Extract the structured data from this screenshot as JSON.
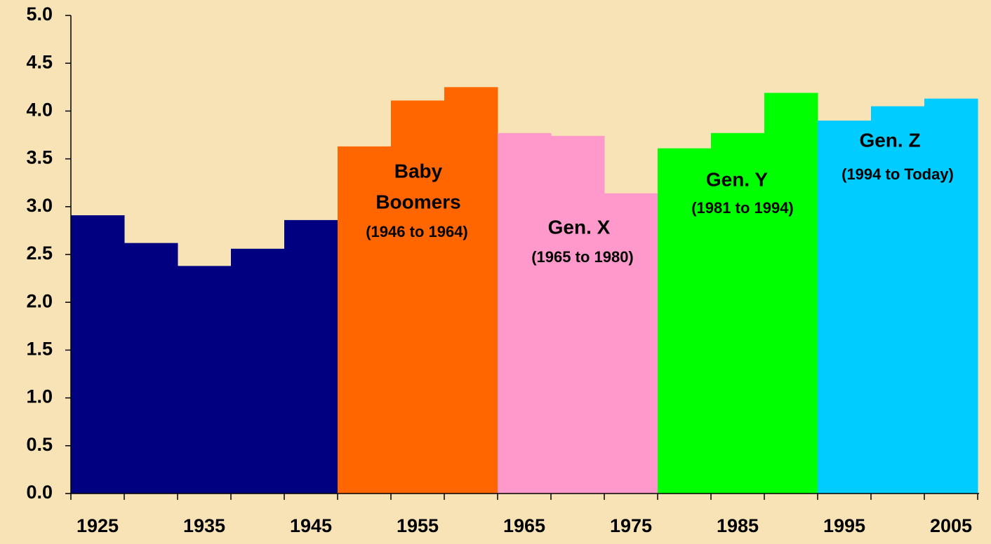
{
  "chart_data": {
    "type": "bar",
    "categories": [
      "1925",
      null,
      "1935",
      null,
      "1945",
      null,
      "1955",
      null,
      "1965",
      null,
      "1975",
      null,
      "1985",
      null,
      "1995",
      null,
      "2005"
    ],
    "values": [
      2.91,
      2.62,
      2.38,
      2.56,
      2.86,
      3.63,
      4.11,
      4.25,
      3.77,
      3.74,
      3.14,
      3.61,
      3.77,
      4.19,
      3.9,
      4.05,
      4.13
    ],
    "colors": [
      "#000080",
      "#000080",
      "#000080",
      "#000080",
      "#000080",
      "#ff6600",
      "#ff6600",
      "#ff6600",
      "#ff99cc",
      "#ff99cc",
      "#ff99cc",
      "#00ff00",
      "#00ff00",
      "#00ff00",
      "#00ccff",
      "#00ccff",
      "#00ccff"
    ],
    "ylim": [
      0,
      5
    ],
    "yticks": [
      {
        "value": 0,
        "label": "0.0"
      },
      {
        "value": 0.5,
        "label": "0.5"
      },
      {
        "value": 1,
        "label": "1.0"
      },
      {
        "value": 1.5,
        "label": "1.5"
      },
      {
        "value": 2,
        "label": "2.0"
      },
      {
        "value": 2.5,
        "label": "2.5"
      },
      {
        "value": 3,
        "label": "3.0"
      },
      {
        "value": 3.5,
        "label": "3.5"
      },
      {
        "value": 4,
        "label": "4.0"
      },
      {
        "value": 4.5,
        "label": "4.5"
      },
      {
        "value": 5,
        "label": "5.0"
      }
    ],
    "annotations": [
      {
        "lines": [
          "Baby",
          "Boomers",
          "(1946 to 1964)"
        ]
      },
      {
        "lines": [
          "Gen. X",
          "(1965 to 1980)"
        ]
      },
      {
        "lines": [
          "Gen. Y",
          "(1981 to 1994)"
        ]
      },
      {
        "lines": [
          "Gen. Z",
          "(1994 to Today)"
        ]
      }
    ]
  }
}
